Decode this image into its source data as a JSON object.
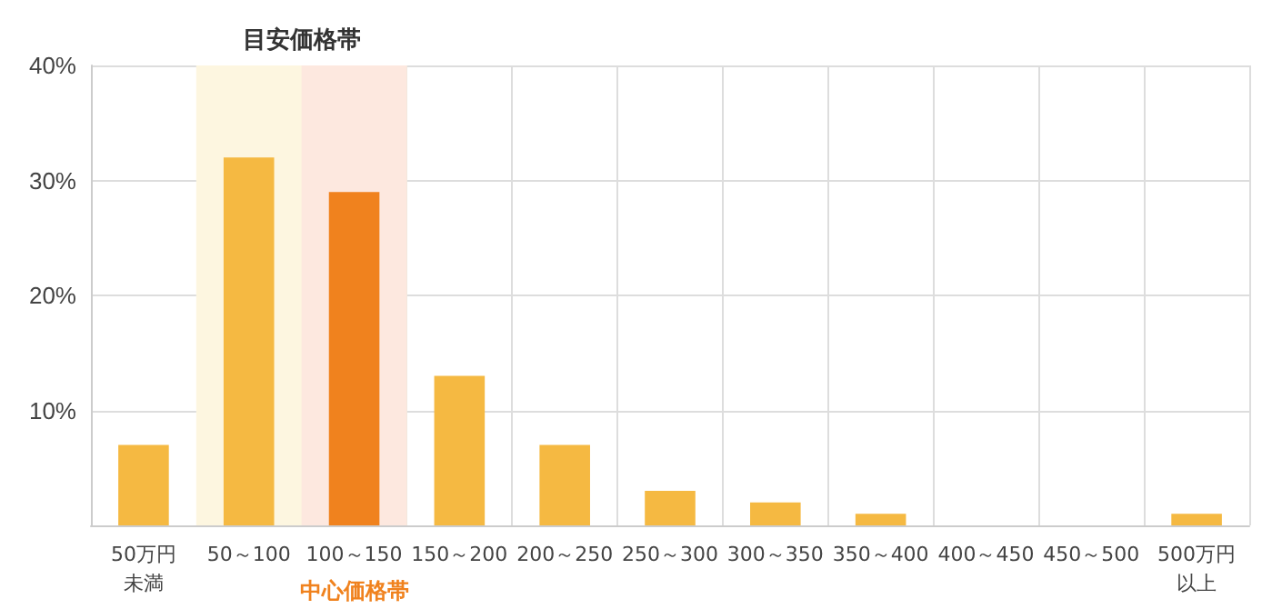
{
  "chart_data": {
    "type": "bar",
    "categories": [
      "50万円未満",
      "50～100",
      "100～150",
      "150～200",
      "200～250",
      "250～300",
      "300～350",
      "350～400",
      "400～450",
      "450～500",
      "500万円以上"
    ],
    "values": [
      7,
      32,
      29,
      13,
      7,
      3,
      2,
      1,
      0,
      0,
      1
    ],
    "colors": [
      "#f5b942",
      "#f5b942",
      "#f0821e",
      "#f5b942",
      "#f5b942",
      "#f5b942",
      "#f5b942",
      "#f5b942",
      "#f5b942",
      "#f5b942",
      "#f5b942"
    ],
    "ylim": [
      0,
      40
    ],
    "yticks": [
      {
        "value": 10,
        "label": "10%"
      },
      {
        "value": 20,
        "label": "20%"
      },
      {
        "value": 30,
        "label": "30%"
      },
      {
        "value": 40,
        "label": "40%"
      }
    ],
    "bands": [
      {
        "axis": "x",
        "from": "50～100",
        "to": "100～150",
        "label": "目安価格帯",
        "color": "#fdf6e0"
      },
      {
        "axis": "x",
        "from": "100～150",
        "to": "100～150",
        "label": "中心価格帯",
        "color": "#fde8df"
      }
    ],
    "grid": true
  }
}
